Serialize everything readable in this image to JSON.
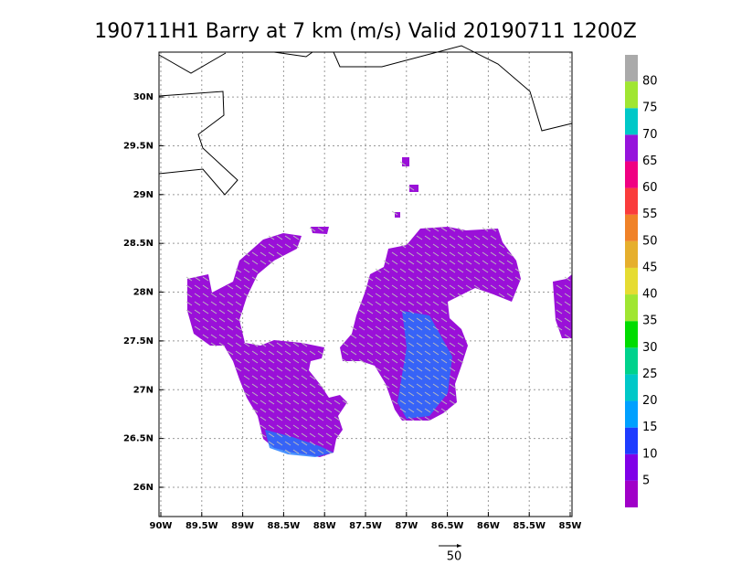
{
  "map": {
    "title": "190711H1 Barry at 7 km (m/s) Valid 20190711 1200Z",
    "xlim": [
      -90,
      -85
    ],
    "ylim": [
      25.7,
      30.46
    ],
    "xticks": [
      {
        "value": -90,
        "label": "90W"
      },
      {
        "value": -89.5,
        "label": "89.5W"
      },
      {
        "value": -89,
        "label": "89W"
      },
      {
        "value": -88.5,
        "label": "88.5W"
      },
      {
        "value": -88,
        "label": "88W"
      },
      {
        "value": -87.5,
        "label": "87.5W"
      },
      {
        "value": -87,
        "label": "87W"
      },
      {
        "value": -86.5,
        "label": "86.5W"
      },
      {
        "value": -86,
        "label": "86W"
      },
      {
        "value": -85.5,
        "label": "85.5W"
      },
      {
        "value": -85,
        "label": "85W"
      }
    ],
    "yticks": [
      {
        "value": 26,
        "label": "26N"
      },
      {
        "value": 26.5,
        "label": "26.5N"
      },
      {
        "value": 27,
        "label": "27N"
      },
      {
        "value": 27.5,
        "label": "27.5N"
      },
      {
        "value": 28,
        "label": "28N"
      },
      {
        "value": 28.5,
        "label": "28.5N"
      },
      {
        "value": 29,
        "label": "29N"
      },
      {
        "value": 29.5,
        "label": "29.5N"
      },
      {
        "value": 30,
        "label": "30N"
      }
    ],
    "colorbar": {
      "range": [
        0,
        85
      ],
      "ticks": [
        5,
        10,
        15,
        20,
        25,
        30,
        35,
        40,
        45,
        50,
        55,
        60,
        65,
        70,
        75,
        80
      ],
      "colors": [
        "#a000c8",
        "#8000e8",
        "#1e3cff",
        "#00a0ff",
        "#00c8c8",
        "#00d28c",
        "#00dc00",
        "#a0e632",
        "#e6dc32",
        "#e6af2d",
        "#f08228",
        "#fa3c3c",
        "#f00082",
        "#9614dc",
        "#00c8c8",
        "#a0e632",
        "#aaaaaa"
      ]
    },
    "vector_scale": 50
  }
}
